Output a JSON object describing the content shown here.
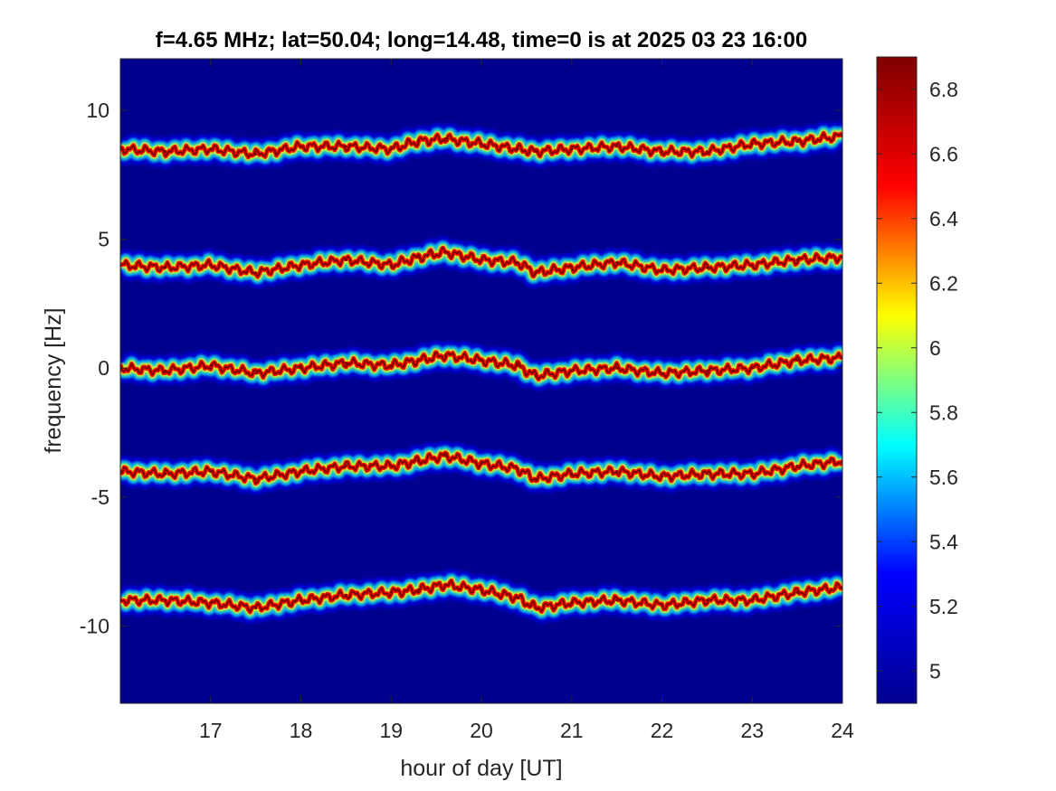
{
  "chart_data": {
    "type": "heatmap",
    "title": "f=4.65 MHz;  lat=50.04; long=14.48, time=0 is at 2025 03 23 16:00",
    "xlabel": "hour of day [UT]",
    "ylabel": "frequency [Hz]",
    "xlim": [
      16,
      24
    ],
    "ylim": [
      -13,
      12
    ],
    "xticks": [
      17,
      18,
      19,
      20,
      21,
      22,
      23,
      24
    ],
    "xtick_labels": [
      "17",
      "18",
      "19",
      "20",
      "21",
      "22",
      "23",
      "24"
    ],
    "yticks": [
      10,
      5,
      0,
      -5,
      -10
    ],
    "ytick_labels": [
      "10",
      "5",
      "0",
      "-5",
      "-10"
    ],
    "colorbar": {
      "range": [
        4.9,
        6.9
      ],
      "ticks": [
        6.8,
        6.6,
        6.4,
        6.2,
        6,
        5.8,
        5.6,
        5.4,
        5.2,
        5
      ],
      "tick_labels": [
        "6.8",
        "6.6",
        "6.4",
        "6.2",
        "6",
        "5.8",
        "5.6",
        "5.4",
        "5.2",
        "5"
      ],
      "colormap": "jet",
      "colormap_stops": [
        "#00008f",
        "#0000ff",
        "#00ffff",
        "#ffff00",
        "#ff0000",
        "#800000"
      ]
    },
    "background_color": "#00008f",
    "series": [
      {
        "x": [
          16,
          16.5,
          17,
          17.5,
          18,
          18.5,
          19,
          19.3,
          19.6,
          20,
          20.4,
          20.6,
          21,
          21.5,
          22,
          22.5,
          23,
          23.5,
          24
        ],
        "y": [
          8.5,
          8.4,
          8.5,
          8.3,
          8.6,
          8.6,
          8.5,
          8.8,
          8.9,
          8.7,
          8.5,
          8.4,
          8.5,
          8.6,
          8.4,
          8.4,
          8.7,
          8.8,
          9.0
        ]
      },
      {
        "x": [
          16,
          16.5,
          17,
          17.5,
          18,
          18.5,
          19,
          19.3,
          19.6,
          20,
          20.4,
          20.6,
          21,
          21.5,
          22,
          22.5,
          23,
          23.5,
          24
        ],
        "y": [
          4.0,
          3.9,
          4.0,
          3.7,
          4.0,
          4.2,
          4.0,
          4.3,
          4.5,
          4.2,
          4.1,
          3.7,
          3.9,
          4.1,
          3.8,
          3.9,
          4.0,
          4.2,
          4.3
        ]
      },
      {
        "x": [
          16,
          16.5,
          17,
          17.5,
          18,
          18.5,
          19,
          19.3,
          19.6,
          20,
          20.4,
          20.6,
          21,
          21.5,
          22,
          22.5,
          23,
          23.5,
          24
        ],
        "y": [
          0.0,
          -0.1,
          0.1,
          -0.2,
          0.0,
          0.2,
          0.1,
          0.3,
          0.5,
          0.3,
          0.1,
          -0.3,
          -0.1,
          0.0,
          -0.2,
          -0.1,
          0.0,
          0.3,
          0.4
        ]
      },
      {
        "x": [
          16,
          16.5,
          17,
          17.5,
          18,
          18.5,
          19,
          19.3,
          19.6,
          20,
          20.4,
          20.6,
          21,
          21.5,
          22,
          22.5,
          23,
          23.5,
          24
        ],
        "y": [
          -4.0,
          -4.1,
          -4.0,
          -4.3,
          -4.0,
          -3.8,
          -3.8,
          -3.6,
          -3.4,
          -3.7,
          -3.9,
          -4.3,
          -4.1,
          -4.0,
          -4.2,
          -4.1,
          -4.1,
          -3.8,
          -3.6
        ]
      },
      {
        "x": [
          16,
          16.5,
          17,
          17.5,
          18,
          18.5,
          19,
          19.3,
          19.6,
          20,
          20.4,
          20.6,
          21,
          21.5,
          22,
          22.5,
          23,
          23.5,
          24
        ],
        "y": [
          -9.0,
          -9.0,
          -9.1,
          -9.3,
          -9.0,
          -8.8,
          -8.7,
          -8.6,
          -8.4,
          -8.6,
          -8.9,
          -9.3,
          -9.1,
          -9.0,
          -9.2,
          -9.0,
          -9.0,
          -8.7,
          -8.5
        ]
      }
    ]
  }
}
